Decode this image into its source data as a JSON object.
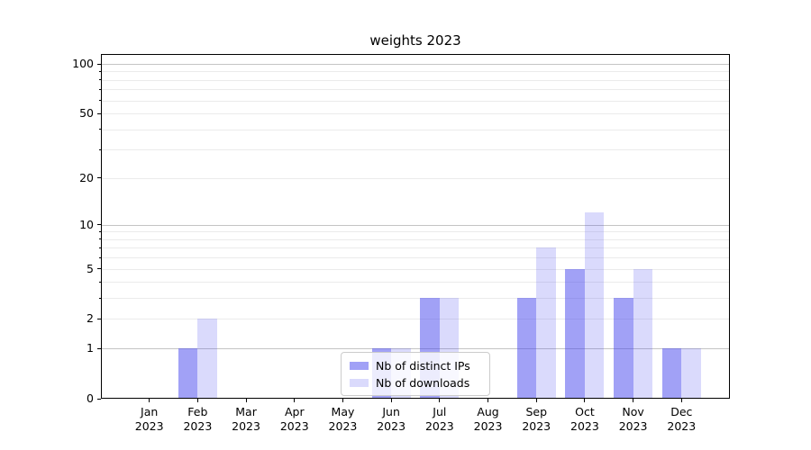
{
  "title": "weights 2023",
  "chart_data": {
    "type": "bar",
    "title": "weights 2023",
    "categories": [
      "Jan 2023",
      "Feb 2023",
      "Mar 2023",
      "Apr 2023",
      "May 2023",
      "Jun 2023",
      "Jul 2023",
      "Aug 2023",
      "Sep 2023",
      "Oct 2023",
      "Nov 2023",
      "Dec 2023"
    ],
    "months": [
      "Jan",
      "Feb",
      "Mar",
      "Apr",
      "May",
      "Jun",
      "Jul",
      "Aug",
      "Sep",
      "Oct",
      "Nov",
      "Dec"
    ],
    "year": "2023",
    "series": [
      {
        "name": "Nb of distinct IPs",
        "values": [
          0,
          1,
          0,
          0,
          0,
          1,
          3,
          0,
          3,
          5,
          3,
          1
        ]
      },
      {
        "name": "Nb of downloads",
        "values": [
          0,
          2,
          0,
          0,
          0,
          1,
          3,
          0,
          7,
          12,
          5,
          1
        ]
      }
    ],
    "yscale": "log10(1+x)",
    "ylim": [
      0,
      115
    ],
    "ytick_values": [
      0,
      1,
      2,
      5,
      10,
      20,
      50,
      100
    ],
    "ytick_labels": [
      "0",
      "1",
      "2",
      "5",
      "10",
      "20",
      "50",
      "100"
    ],
    "major_grid_values": [
      1,
      10,
      100
    ],
    "minor_grid_values": [
      2,
      3,
      4,
      5,
      6,
      7,
      8,
      9,
      20,
      30,
      40,
      50,
      60,
      70,
      80,
      90
    ],
    "grid": "on",
    "legend_position": "lower center",
    "xlabel": "",
    "ylabel": ""
  },
  "colors": {
    "series": [
      "rgba(68,68,238,0.5)",
      "rgba(68,68,238,0.2)"
    ],
    "series_solid": [
      "#a1a1f6",
      "#d9d9fb"
    ],
    "grid_major": "#c4c4c4",
    "grid_minor": "#ebebeb",
    "spine": "#000000",
    "legend_border": "#cccccc"
  }
}
